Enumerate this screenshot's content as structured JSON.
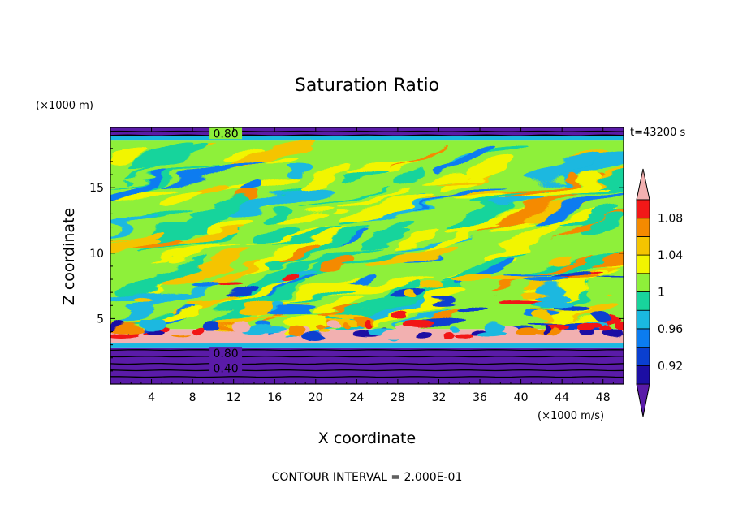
{
  "chart_data": {
    "type": "heatmap",
    "title": "Saturation Ratio",
    "xlabel": "X coordinate",
    "ylabel": "Z coordinate",
    "x_unit": "(×1000 m/s)",
    "y_unit": "(×1000 m)",
    "time_label": "t=43200 s",
    "footer": "CONTOUR INTERVAL = 2.000E-01",
    "xlim": [
      0,
      50
    ],
    "ylim": [
      0,
      19.6
    ],
    "x_ticks": [
      "4",
      "8",
      "12",
      "16",
      "20",
      "24",
      "28",
      "32",
      "36",
      "40",
      "44",
      "48"
    ],
    "y_ticks": [
      "5",
      "10",
      "15"
    ],
    "colorbar": {
      "tick_labels": [
        "1.08",
        "1.04",
        "1",
        "0.96",
        "0.92"
      ],
      "levels": [
        0.9,
        0.92,
        0.94,
        0.96,
        0.98,
        1.0,
        1.02,
        1.04,
        1.06,
        1.08,
        1.1
      ],
      "colors": [
        "#5a1ba8",
        "#1c0ea3",
        "#0a3fd0",
        "#0b7cf0",
        "#1ab8e0",
        "#18d49c",
        "#8ef03a",
        "#f2f500",
        "#f5c400",
        "#f58a00",
        "#f21818",
        "#f2b0b0"
      ],
      "extend": "both"
    },
    "contour_labels": [
      "0.80",
      "0.80",
      "0.40"
    ],
    "layers": [
      {
        "z_range": [
          0,
          2.8
        ],
        "value": "< 0.90"
      },
      {
        "z_range": [
          2.8,
          3.1
        ],
        "value": "~0.95"
      },
      {
        "z_range": [
          3.1,
          4.2
        ],
        "value": "> 1.10"
      },
      {
        "z_range": [
          4.2,
          18.6
        ],
        "value": "0.96 - 1.08"
      },
      {
        "z_range": [
          18.6,
          19.0
        ],
        "value": "~0.95"
      },
      {
        "z_range": [
          19.0,
          19.6
        ],
        "value": "< 0.90"
      }
    ]
  }
}
